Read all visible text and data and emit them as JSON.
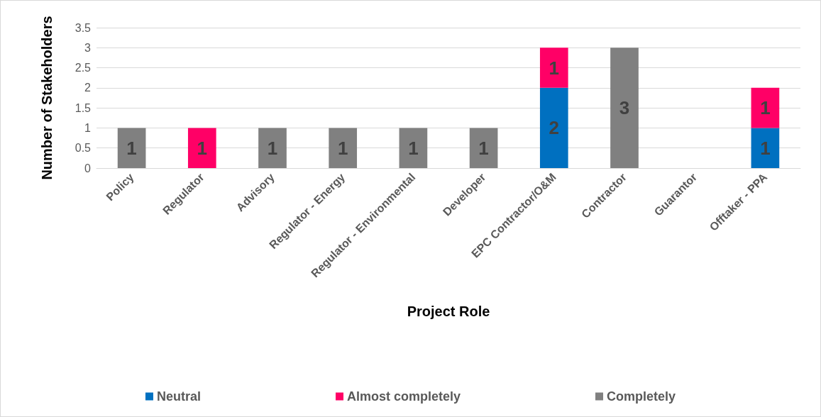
{
  "chart_data": {
    "type": "bar",
    "stacked": true,
    "xlabel": "Project Role",
    "ylabel": "Number of Stakeholders",
    "categories": [
      "Policy",
      "Regulator",
      "Advisory",
      "Regulator - Energy",
      "Regulator - Environmental",
      "Developer",
      "EPC Contractor/O&M",
      "Contractor",
      "Guarantor",
      "Offtaker - PPA"
    ],
    "series": [
      {
        "name": "Neutral",
        "color": "#0070c0",
        "values": [
          null,
          null,
          null,
          null,
          null,
          null,
          2,
          null,
          null,
          1
        ]
      },
      {
        "name": "Almost completely",
        "color": "#ff0066",
        "values": [
          null,
          1,
          null,
          null,
          null,
          null,
          1,
          null,
          null,
          1
        ]
      },
      {
        "name": "Completely",
        "color": "#808080",
        "values": [
          1,
          null,
          1,
          1,
          1,
          1,
          null,
          3,
          null,
          null
        ]
      }
    ],
    "ylim": [
      0,
      3.5
    ],
    "yticks": [
      0,
      0.5,
      1,
      1.5,
      2,
      2.5,
      3,
      3.5
    ],
    "grid": "y",
    "legend": "bottom",
    "data_labels": true
  }
}
